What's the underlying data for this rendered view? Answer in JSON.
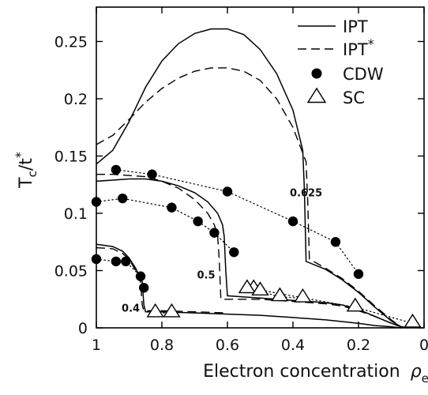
{
  "chart_data": {
    "type": "line",
    "title": "",
    "xlabel": "Electron concentration",
    "xlabel_symbol": "ρ",
    "xlabel_symbol_sub": "e",
    "ylabel_main": "T",
    "ylabel_sub": "c",
    "ylabel_slash": "/t",
    "ylabel_sup": "*",
    "xlim": [
      1.0,
      0.0
    ],
    "ylim": [
      0.0,
      0.28
    ],
    "x_reversed": true,
    "grid": false,
    "legend_position": "top-right",
    "x_ticks": [
      1,
      0.8,
      0.6,
      0.4,
      0.2,
      0
    ],
    "x_tick_labels": [
      "1",
      "0.8",
      "0.6",
      "0.4",
      "0.2",
      "0"
    ],
    "y_ticks": [
      0,
      0.05,
      0.1,
      0.15,
      0.2,
      0.25
    ],
    "y_tick_labels": [
      "0",
      "0.05",
      "0.1",
      "0.15",
      "0.2",
      "0.25"
    ],
    "legend": [
      {
        "label": "IPT",
        "sup": "",
        "style": "solid"
      },
      {
        "label": "IPT",
        "sup": "*",
        "style": "dashed"
      },
      {
        "label": "CDW",
        "sup": "",
        "style": "filled-circle"
      },
      {
        "label": "SC",
        "sup": "",
        "style": "open-triangle"
      }
    ],
    "annotations": [
      {
        "text": "0.625",
        "x": 0.36,
        "y": 0.115
      },
      {
        "text": "0.5",
        "x": 0.665,
        "y": 0.043
      },
      {
        "text": "0.4",
        "x": 0.895,
        "y": 0.014
      }
    ],
    "series": [
      {
        "name": "IPT",
        "group": "0.625",
        "style": "solid",
        "x": [
          1,
          0.95,
          0.9,
          0.85,
          0.8,
          0.75,
          0.7,
          0.65,
          0.6,
          0.55,
          0.5,
          0.45,
          0.4,
          0.37,
          0.365,
          0.36,
          0.3,
          0.25,
          0.2,
          0.15,
          0.1,
          0.07,
          0.05
        ],
        "y": [
          0.143,
          0.155,
          0.18,
          0.21,
          0.233,
          0.248,
          0.257,
          0.261,
          0.261,
          0.256,
          0.243,
          0.222,
          0.19,
          0.155,
          0.12,
          0.058,
          0.051,
          0.042,
          0.031,
          0.018,
          0.006,
          0.001,
          0.0
        ]
      },
      {
        "name": "IPT*",
        "group": "0.625",
        "style": "dashed",
        "x": [
          1,
          0.95,
          0.9,
          0.85,
          0.8,
          0.75,
          0.7,
          0.65,
          0.6,
          0.55,
          0.5,
          0.45,
          0.4,
          0.36,
          0.355,
          0.35,
          0.3,
          0.25,
          0.2,
          0.15,
          0.1,
          0.07,
          0.05
        ],
        "y": [
          0.16,
          0.168,
          0.182,
          0.197,
          0.209,
          0.218,
          0.224,
          0.227,
          0.227,
          0.224,
          0.216,
          0.2,
          0.175,
          0.145,
          0.11,
          0.06,
          0.052,
          0.043,
          0.032,
          0.019,
          0.007,
          0.001,
          0.0
        ]
      },
      {
        "name": "IPT",
        "group": "0.5",
        "style": "solid",
        "x": [
          1,
          0.95,
          0.9,
          0.85,
          0.8,
          0.75,
          0.7,
          0.66,
          0.63,
          0.615,
          0.61,
          0.605,
          0.6,
          0.55,
          0.5,
          0.45,
          0.4,
          0.35,
          0.3,
          0.25,
          0.2,
          0.15,
          0.1,
          0.07,
          0.05
        ],
        "y": [
          0.128,
          0.129,
          0.13,
          0.13,
          0.128,
          0.124,
          0.118,
          0.11,
          0.1,
          0.09,
          0.08,
          0.05,
          0.028,
          0.027,
          0.026,
          0.025,
          0.024,
          0.023,
          0.022,
          0.02,
          0.016,
          0.01,
          0.004,
          0.001,
          0.0
        ]
      },
      {
        "name": "IPT*",
        "group": "0.5",
        "style": "dashed",
        "x": [
          1,
          0.95,
          0.9,
          0.85,
          0.8,
          0.75,
          0.7,
          0.66,
          0.64,
          0.63,
          0.625,
          0.62,
          0.6,
          0.55,
          0.5,
          0.45,
          0.4,
          0.35,
          0.3,
          0.25,
          0.2,
          0.15,
          0.1,
          0.07,
          0.05
        ],
        "y": [
          0.134,
          0.134,
          0.133,
          0.132,
          0.128,
          0.122,
          0.112,
          0.1,
          0.09,
          0.08,
          0.06,
          0.025,
          0.025,
          0.025,
          0.025,
          0.024,
          0.023,
          0.022,
          0.021,
          0.019,
          0.015,
          0.01,
          0.004,
          0.001,
          0.0
        ]
      },
      {
        "name": "IPT",
        "group": "0.4",
        "style": "solid",
        "x": [
          1,
          0.95,
          0.92,
          0.9,
          0.88,
          0.86,
          0.855,
          0.85,
          0.8,
          0.7,
          0.6,
          0.5,
          0.4,
          0.3,
          0.2,
          0.15,
          0.1,
          0.07
        ],
        "y": [
          0.073,
          0.071,
          0.067,
          0.061,
          0.052,
          0.04,
          0.02,
          0.014,
          0.014,
          0.013,
          0.012,
          0.011,
          0.009,
          0.007,
          0.004,
          0.002,
          0.001,
          0.0
        ]
      },
      {
        "name": "IPT*",
        "group": "0.4",
        "style": "dashed",
        "x": [
          1,
          0.95,
          0.92,
          0.9,
          0.88,
          0.865,
          0.86,
          0.855,
          0.8,
          0.7,
          0.6
        ],
        "y": [
          0.07,
          0.069,
          0.065,
          0.06,
          0.05,
          0.04,
          0.02,
          0.015,
          0.015,
          0.014,
          0.013
        ]
      },
      {
        "name": "CDW",
        "group": "0.625",
        "style": "dotted-circle",
        "x": [
          0.94,
          0.83,
          0.6,
          0.4,
          0.27,
          0.2
        ],
        "y": [
          0.138,
          0.134,
          0.119,
          0.093,
          0.075,
          0.047
        ]
      },
      {
        "name": "CDW",
        "group": "0.5",
        "style": "dotted-circle",
        "x": [
          1,
          0.92,
          0.77,
          0.69,
          0.64,
          0.58
        ],
        "y": [
          0.11,
          0.113,
          0.105,
          0.093,
          0.083,
          0.066
        ]
      },
      {
        "name": "CDW",
        "group": "0.4",
        "style": "dotted-circle",
        "x": [
          1,
          0.94,
          0.91,
          0.865,
          0.855
        ],
        "y": [
          0.06,
          0.058,
          0.058,
          0.045,
          0.035
        ]
      },
      {
        "name": "SC",
        "group": "0.625",
        "style": "dotted-triangle",
        "x": [
          0.52,
          0.21,
          0.035
        ],
        "y": [
          0.034,
          0.018,
          0.004
        ]
      },
      {
        "name": "SC",
        "group": "0.5",
        "style": "dotted-triangle",
        "x": [
          0.54,
          0.5,
          0.44,
          0.37
        ],
        "y": [
          0.034,
          0.032,
          0.027,
          0.026
        ]
      },
      {
        "name": "SC",
        "group": "0.4",
        "style": "dotted-triangle",
        "x": [
          0.82,
          0.77
        ],
        "y": [
          0.013,
          0.013
        ]
      }
    ]
  }
}
